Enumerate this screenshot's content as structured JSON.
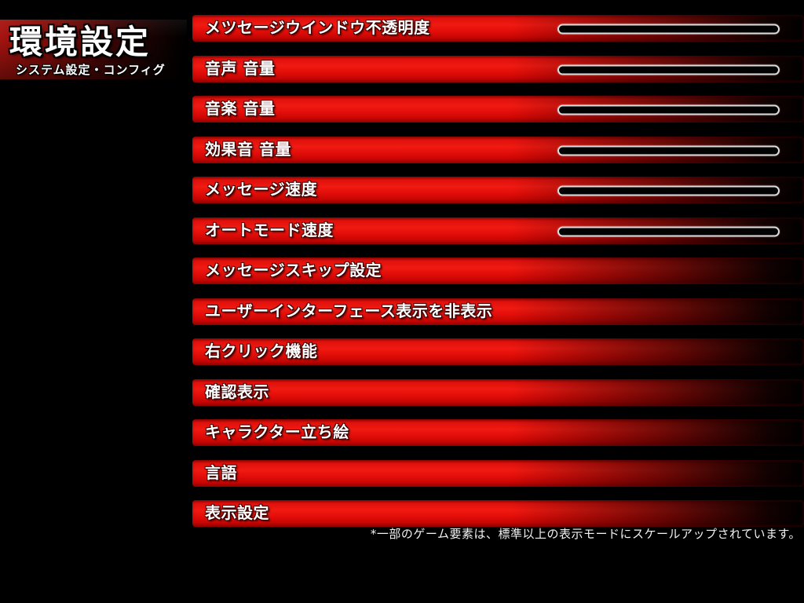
{
  "header": {
    "title": "環境設定",
    "subtitle": "システム設定・コンフィグ"
  },
  "settings": [
    {
      "label": "メツセージウインドウ不透明度",
      "has_slider": true
    },
    {
      "label": "音声 音量",
      "has_slider": true
    },
    {
      "label": "音楽 音量",
      "has_slider": true
    },
    {
      "label": "効果音 音量",
      "has_slider": true
    },
    {
      "label": "メッセージ速度",
      "has_slider": true
    },
    {
      "label": "オートモード速度",
      "has_slider": true
    },
    {
      "label": "メッセージスキップ設定",
      "has_slider": false
    },
    {
      "label": "ユーザーインターフェース表示を非表示",
      "has_slider": false
    },
    {
      "label": "右クリック機能",
      "has_slider": false
    },
    {
      "label": "確認表示",
      "has_slider": false
    },
    {
      "label": "キャラクター立ち絵",
      "has_slider": false
    },
    {
      "label": "言語",
      "has_slider": false
    },
    {
      "label": "表示設定",
      "has_slider": false
    }
  ],
  "footnote": "*一部のゲーム要素は、標準以上の表示モードにスケールアップされています。",
  "colors": {
    "background": "#000000",
    "bar_red": "#e8100c",
    "slider_border": "#dcdcdc",
    "slider_fill": "#020202",
    "text": "#ffffff"
  }
}
